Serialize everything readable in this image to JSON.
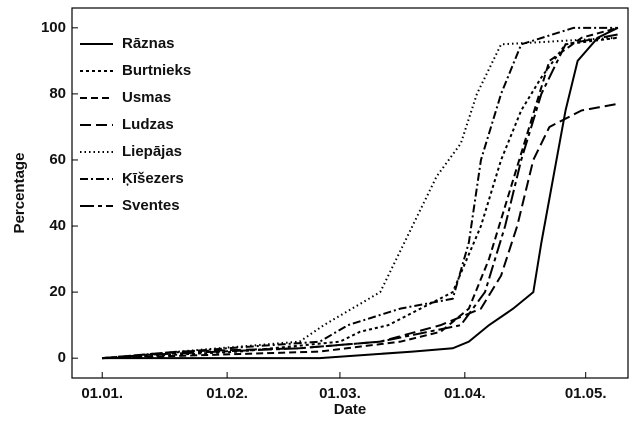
{
  "chart_data": {
    "type": "line",
    "xlabel": "Date",
    "ylabel": "Percentage",
    "xlim": [
      -6.5,
      131.5
    ],
    "ylim": [
      -6,
      106
    ],
    "xticks": [
      {
        "value": 1,
        "label": "01.01."
      },
      {
        "value": 32,
        "label": "01.02."
      },
      {
        "value": 60,
        "label": "01.03."
      },
      {
        "value": 91,
        "label": "01.04."
      },
      {
        "value": 121,
        "label": "01.05."
      }
    ],
    "yticks": [
      0,
      20,
      40,
      60,
      80,
      100
    ],
    "legend": "upper-left",
    "series": [
      {
        "name": "Rāznas",
        "color": "#000000",
        "dash": "none",
        "x": [
          1,
          55,
          78,
          88,
          92,
          97,
          103,
          108,
          110,
          113,
          116,
          119,
          124,
          129
        ],
        "values": [
          0,
          0,
          2,
          3,
          5,
          10,
          15,
          20,
          35,
          55,
          75,
          90,
          97,
          100
        ]
      },
      {
        "name": "Burtnieks",
        "color": "#000000",
        "dash": "3,3",
        "x": [
          1,
          35,
          60,
          65,
          72,
          80,
          88,
          95,
          100,
          105,
          110,
          116,
          129
        ],
        "values": [
          0,
          2,
          5,
          8,
          10,
          15,
          20,
          40,
          60,
          75,
          85,
          95,
          97
        ]
      },
      {
        "name": "Usmas",
        "color": "#000000",
        "dash": "7,4",
        "x": [
          1,
          55,
          75,
          85,
          92,
          97,
          102,
          107,
          112,
          120,
          129
        ],
        "values": [
          0,
          2,
          5,
          8,
          15,
          30,
          50,
          70,
          90,
          97,
          100
        ]
      },
      {
        "name": "Ludzas",
        "color": "#000000",
        "dash": "11,5",
        "x": [
          1,
          20,
          50,
          70,
          85,
          95,
          100,
          104,
          108,
          112,
          120,
          129
        ],
        "values": [
          0,
          2,
          3,
          5,
          10,
          15,
          25,
          40,
          60,
          70,
          75,
          77
        ]
      },
      {
        "name": "Liepājas",
        "color": "#000000",
        "dash": "1.5,3",
        "x": [
          1,
          20,
          50,
          56,
          63,
          70,
          74,
          78,
          84,
          90,
          94,
          100,
          129
        ],
        "values": [
          0,
          2,
          5,
          10,
          15,
          20,
          30,
          40,
          55,
          65,
          80,
          95,
          97
        ]
      },
      {
        "name": "Ķīšezers",
        "color": "#000000",
        "dash": "8,3,2,3",
        "x": [
          1,
          32,
          55,
          62,
          75,
          88,
          92,
          95,
          100,
          105,
          118,
          129
        ],
        "values": [
          0,
          3,
          5,
          10,
          15,
          18,
          35,
          60,
          80,
          95,
          100,
          100
        ]
      },
      {
        "name": "Sventes",
        "color": "#000000",
        "dash": "14,4,4,4",
        "x": [
          1,
          12,
          30,
          50,
          70,
          90,
          96,
          101,
          105,
          110,
          116,
          129
        ],
        "values": [
          0,
          1,
          2,
          3,
          5,
          10,
          20,
          40,
          60,
          80,
          95,
          98
        ]
      }
    ]
  }
}
